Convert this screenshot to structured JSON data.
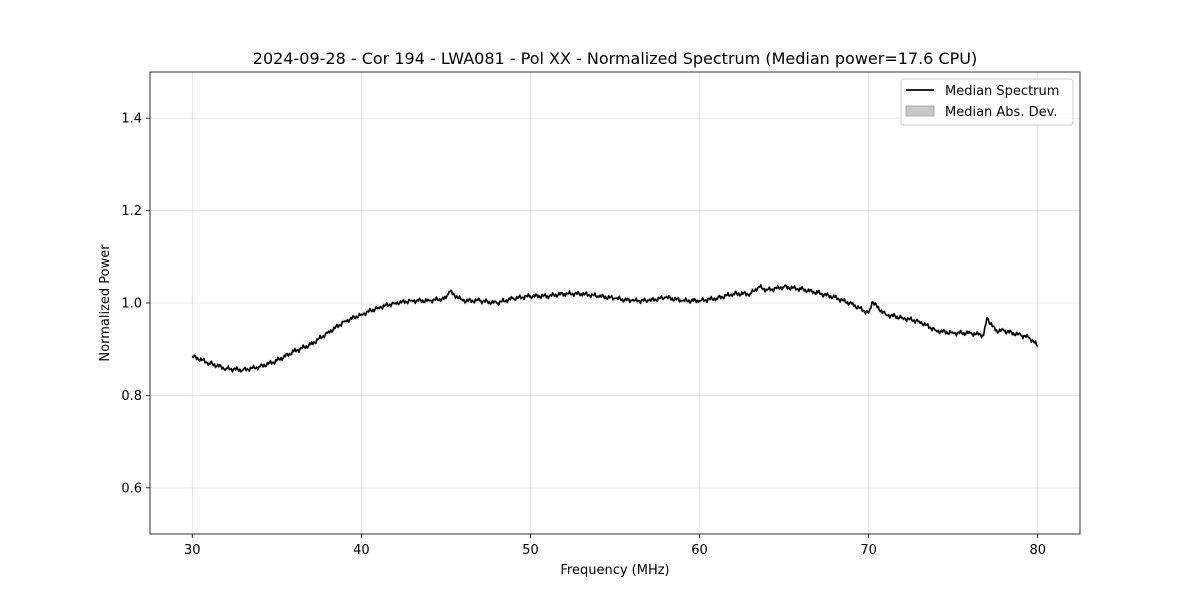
{
  "chart_data": {
    "type": "line",
    "title": "2024-09-28 - Cor 194 - LWA081 - Pol XX - Normalized Spectrum (Median power=17.6 CPU)",
    "xlabel": "Frequency (MHz)",
    "ylabel": "Normalized Power",
    "xlim": [
      27.5,
      82.5
    ],
    "ylim": [
      0.5,
      1.5
    ],
    "xticks": [
      30,
      40,
      50,
      60,
      70,
      80
    ],
    "yticks": [
      0.6,
      0.8,
      1.0,
      1.2,
      1.4
    ],
    "xtick_labels": [
      "30",
      "40",
      "50",
      "60",
      "70",
      "80"
    ],
    "ytick_labels": [
      "0.6",
      "0.8",
      "1.0",
      "1.2",
      "1.4"
    ],
    "grid": true,
    "legend": {
      "position": "top-right",
      "entries": [
        {
          "label": "Median Spectrum",
          "kind": "line",
          "color": "#000000"
        },
        {
          "label": "Median Abs. Dev.",
          "kind": "patch",
          "color": "#c8c8c8"
        }
      ]
    },
    "series": [
      {
        "name": "Median Spectrum",
        "color": "#000000",
        "x": [
          30,
          31,
          32,
          33,
          34,
          35,
          36,
          37,
          38,
          39,
          40,
          41,
          42,
          43,
          44,
          45,
          45.2,
          46,
          47,
          48,
          49,
          50,
          51,
          52,
          53,
          54,
          55,
          56,
          57,
          58,
          59,
          60,
          61,
          62,
          63,
          63.5,
          64,
          65,
          66,
          67,
          68,
          69,
          70,
          70.2,
          71,
          72,
          73,
          74,
          75,
          76,
          76.8,
          77,
          77.5,
          78,
          79,
          79.5,
          80
        ],
        "y": [
          0.885,
          0.87,
          0.858,
          0.855,
          0.862,
          0.875,
          0.895,
          0.91,
          0.935,
          0.96,
          0.975,
          0.99,
          1.0,
          1.005,
          1.005,
          1.01,
          1.025,
          1.005,
          1.005,
          1.0,
          1.01,
          1.015,
          1.015,
          1.02,
          1.02,
          1.015,
          1.01,
          1.005,
          1.005,
          1.012,
          1.005,
          1.005,
          1.01,
          1.02,
          1.02,
          1.035,
          1.028,
          1.035,
          1.03,
          1.022,
          1.012,
          0.998,
          0.978,
          1.002,
          0.975,
          0.968,
          0.96,
          0.94,
          0.935,
          0.935,
          0.93,
          0.968,
          0.94,
          0.94,
          0.93,
          0.925,
          0.907
        ]
      }
    ]
  }
}
